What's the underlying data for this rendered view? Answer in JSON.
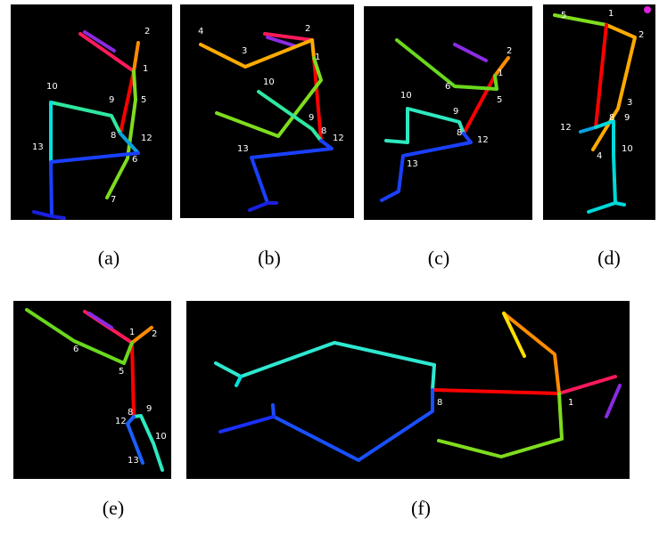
{
  "panels": [
    {
      "caption": "(a)",
      "labels": [
        "2",
        "1",
        "10",
        "9",
        "5",
        "8",
        "12",
        "13",
        "6",
        "7"
      ]
    },
    {
      "caption": "(b)",
      "labels": [
        "4",
        "2",
        "3",
        "1",
        "10",
        "9",
        "8",
        "12",
        "13"
      ]
    },
    {
      "caption": "(c)",
      "labels": [
        "2",
        "1",
        "6",
        "5",
        "10",
        "9",
        "8",
        "12",
        "13"
      ]
    },
    {
      "caption": "(d)",
      "labels": [
        "5",
        "1",
        "2",
        "3",
        "8",
        "9",
        "12",
        "10",
        "4"
      ]
    },
    {
      "caption": "(e)",
      "labels": [
        "1",
        "2",
        "6",
        "5",
        "8",
        "9",
        "12",
        "10",
        "13"
      ]
    },
    {
      "caption": "(f)",
      "labels": [
        "8",
        "1"
      ]
    }
  ]
}
